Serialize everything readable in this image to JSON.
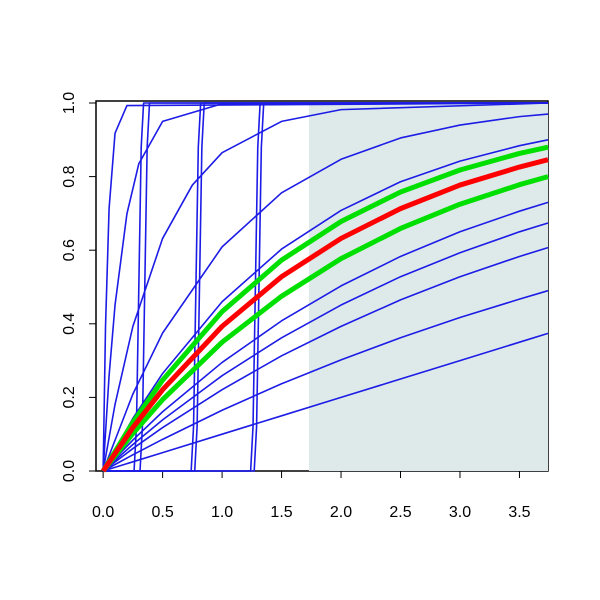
{
  "chart_data": {
    "type": "line",
    "xlim": [
      -0.06,
      3.74
    ],
    "ylim": [
      0,
      1
    ],
    "xticks": [
      {
        "value": 0,
        "label": "0.0"
      },
      0.5,
      {
        "value": 1,
        "label": "1.0"
      },
      1.5,
      {
        "value": 2,
        "label": "2.0"
      },
      2.5,
      {
        "value": 3,
        "label": "3.0"
      },
      3.5
    ],
    "yticks": [
      {
        "value": 0,
        "label": "0.0"
      },
      0.2,
      0.4,
      0.6,
      0.8,
      {
        "value": 1,
        "label": "1.0"
      }
    ],
    "shaded_region": {
      "x": [
        1.73,
        3.74
      ],
      "y": [
        0,
        1
      ],
      "color": "#deeaea"
    },
    "series": [
      {
        "color": "#1c1ce6",
        "x": [
          0,
          0.02,
          0.05,
          0.1,
          0.2,
          3.74
        ],
        "values": [
          0,
          0.393,
          0.713,
          0.918,
          0.993,
          1.0
        ]
      },
      {
        "color": "#1c1ce6",
        "x": [
          0,
          0.05,
          0.1,
          0.2,
          0.3,
          0.5,
          1,
          3.74
        ],
        "values": [
          0,
          0.259,
          0.451,
          0.699,
          0.835,
          0.95,
          0.998,
          1.0
        ]
      },
      {
        "color": "#1c1ce6",
        "x": [
          0,
          0.1,
          0.25,
          0.5,
          0.75,
          1,
          1.5,
          2,
          3.74
        ],
        "values": [
          0,
          0.181,
          0.393,
          0.632,
          0.777,
          0.865,
          0.95,
          0.982,
          1.0
        ]
      },
      {
        "color": "#1c1ce6",
        "x": [
          0,
          0.26,
          0.28,
          0.3,
          0.32,
          0.34,
          3.74
        ],
        "values": [
          0,
          0,
          0.12,
          0.5,
          0.88,
          1,
          1
        ]
      },
      {
        "color": "#1c1ce6",
        "x": [
          0,
          0.31,
          0.33,
          0.35,
          0.37,
          0.39,
          3.74
        ],
        "values": [
          0,
          0,
          0.12,
          0.5,
          0.88,
          1,
          1
        ]
      },
      {
        "color": "#1c1ce6",
        "x": [
          0,
          0.74,
          0.76,
          0.78,
          0.8,
          0.82,
          3.74
        ],
        "values": [
          0,
          0,
          0.12,
          0.5,
          0.88,
          1,
          1
        ]
      },
      {
        "color": "#1c1ce6",
        "x": [
          0,
          0.77,
          0.79,
          0.81,
          0.83,
          0.85,
          3.74
        ],
        "values": [
          0,
          0,
          0.12,
          0.5,
          0.88,
          1,
          1
        ]
      },
      {
        "color": "#1c1ce6",
        "x": [
          0,
          1.24,
          1.26,
          1.28,
          1.3,
          1.32,
          3.74
        ],
        "values": [
          0,
          0,
          0.12,
          0.5,
          0.88,
          1,
          1
        ]
      },
      {
        "color": "#1c1ce6",
        "x": [
          0,
          1.27,
          1.29,
          1.31,
          1.33,
          1.35,
          3.74
        ],
        "values": [
          0,
          0,
          0.12,
          0.5,
          0.88,
          1,
          1
        ]
      },
      {
        "color": "#1c1ce6",
        "x": [
          0,
          0.25,
          0.5,
          1,
          1.5,
          2,
          2.5,
          3,
          3.5,
          3.74
        ],
        "values": [
          0,
          0.209,
          0.375,
          0.609,
          0.756,
          0.847,
          0.905,
          0.94,
          0.963,
          0.97
        ]
      },
      {
        "color": "#1c1ce6",
        "x": [
          0,
          0.25,
          0.5,
          1,
          1.5,
          2,
          2.5,
          3,
          3.5,
          3.74
        ],
        "values": [
          0,
          0.143,
          0.265,
          0.46,
          0.603,
          0.708,
          0.786,
          0.842,
          0.884,
          0.9
        ]
      },
      {
        "color": "#1c1ce6",
        "x": [
          0,
          0.25,
          0.5,
          1,
          1.5,
          2,
          2.5,
          3,
          3.5,
          3.74
        ],
        "values": [
          0,
          0.084,
          0.161,
          0.295,
          0.408,
          0.503,
          0.583,
          0.65,
          0.706,
          0.73
        ]
      },
      {
        "color": "#1c1ce6",
        "x": [
          0,
          0.25,
          0.5,
          1,
          1.5,
          2,
          2.5,
          3,
          3.5,
          3.74
        ],
        "values": [
          0,
          0.072,
          0.139,
          0.259,
          0.362,
          0.451,
          0.528,
          0.593,
          0.65,
          0.674
        ]
      },
      {
        "color": "#1c1ce6",
        "x": [
          0,
          0.25,
          0.5,
          1,
          1.5,
          2,
          2.5,
          3,
          3.5,
          3.74
        ],
        "values": [
          0,
          0.061,
          0.118,
          0.221,
          0.313,
          0.393,
          0.465,
          0.528,
          0.583,
          0.607
        ]
      },
      {
        "color": "#1c1ce6",
        "x": [
          0,
          0.25,
          0.5,
          1,
          1.5,
          2,
          2.5,
          3,
          3.5,
          3.74
        ],
        "values": [
          0,
          0.044,
          0.086,
          0.165,
          0.237,
          0.302,
          0.362,
          0.417,
          0.467,
          0.49
        ]
      },
      {
        "color": "#1c1ce6",
        "x": [
          0,
          0.25,
          0.5,
          1,
          1.5,
          2,
          2.5,
          3,
          3.5,
          3.74
        ],
        "values": [
          0,
          0.025,
          0.05,
          0.1,
          0.15,
          0.2,
          0.25,
          0.3,
          0.35,
          0.374
        ]
      },
      {
        "color": "#00e000",
        "emphasis": true,
        "x": [
          0,
          0.25,
          0.5,
          1,
          1.5,
          2,
          2.5,
          3,
          3.5,
          3.74
        ],
        "values": [
          0,
          0.132,
          0.247,
          0.433,
          0.573,
          0.678,
          0.758,
          0.818,
          0.863,
          0.88
        ]
      },
      {
        "color": "#00e000",
        "emphasis": true,
        "x": [
          0,
          0.25,
          0.5,
          1,
          1.5,
          2,
          2.5,
          3,
          3.5,
          3.74
        ],
        "values": [
          0,
          0.102,
          0.194,
          0.35,
          0.475,
          0.577,
          0.659,
          0.725,
          0.778,
          0.8
        ]
      },
      {
        "color": "#ff0000",
        "emphasis": true,
        "x": [
          0,
          0.25,
          0.5,
          1,
          1.5,
          2,
          2.5,
          3,
          3.5,
          3.74
        ],
        "values": [
          0,
          0.118,
          0.221,
          0.393,
          0.528,
          0.632,
          0.713,
          0.777,
          0.826,
          0.846
        ]
      }
    ]
  }
}
